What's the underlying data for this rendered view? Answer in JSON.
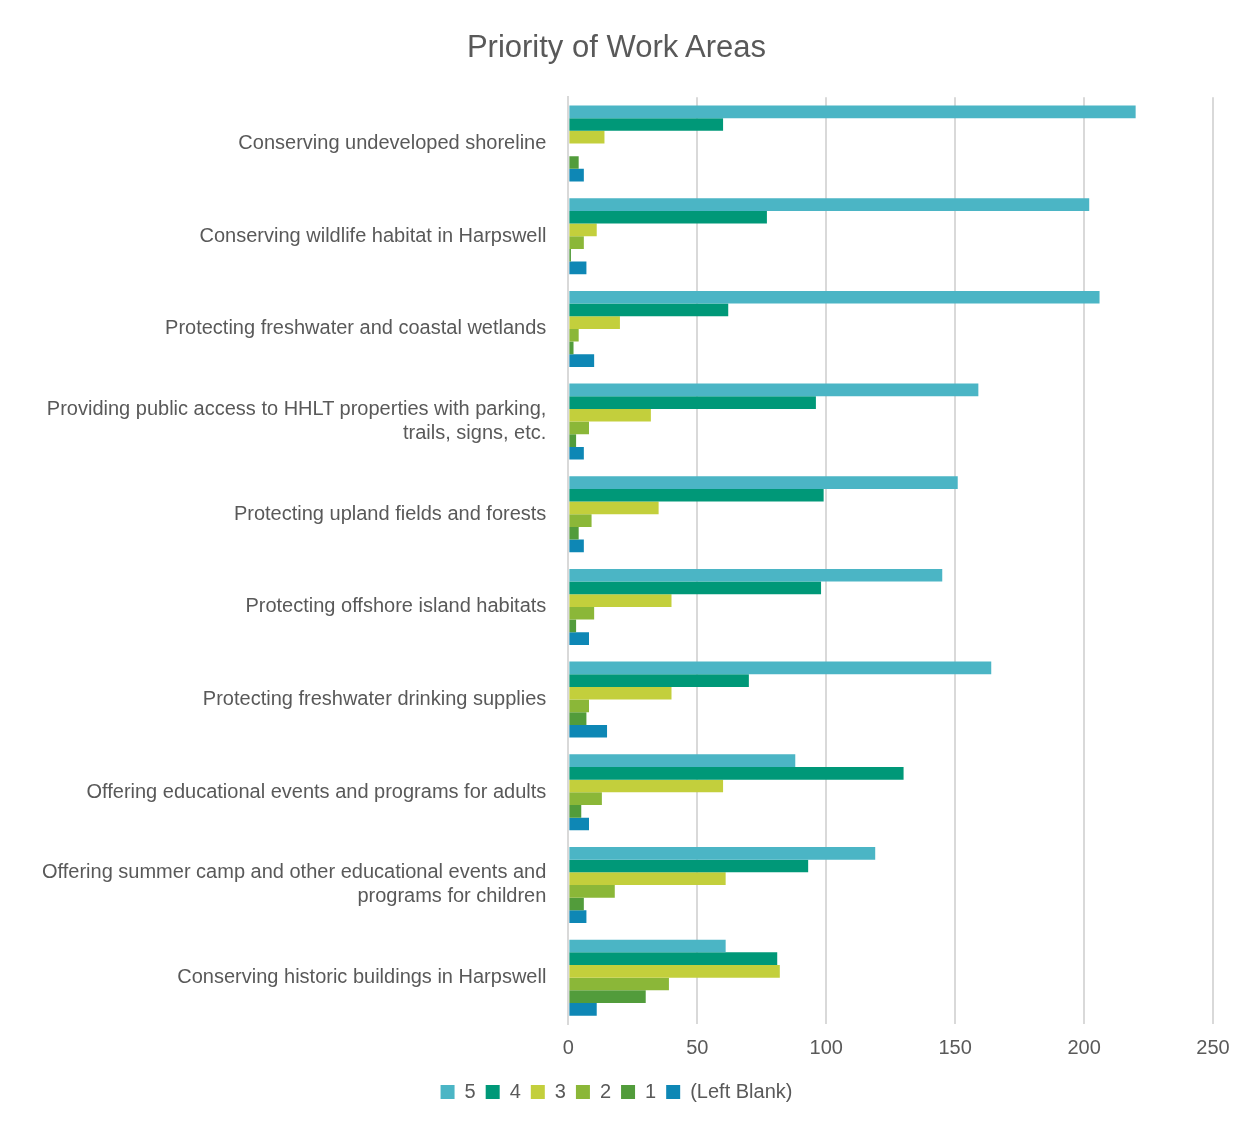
{
  "chart_data": {
    "type": "bar",
    "orientation": "horizontal",
    "title": "Priority of Work Areas",
    "categories": [
      "Conserving undeveloped shoreline",
      "Conserving wildlife habitat in Harpswell",
      "Protecting freshwater and coastal wetlands",
      "Providing public access to HHLT properties with parking, trails, signs, etc.",
      "Protecting upland fields and forests",
      "Protecting offshore island habitats",
      "Protecting freshwater drinking supplies",
      "Offering educational events and programs for adults",
      "Offering summer camp and other educational events and programs for children",
      "Conserving historic buildings in Harpswell"
    ],
    "series": [
      {
        "name": "5",
        "color": "#4bb5c5",
        "values": [
          220,
          202,
          206,
          159,
          151,
          145,
          164,
          88,
          119,
          61
        ]
      },
      {
        "name": "4",
        "color": "#009878",
        "values": [
          60,
          77,
          62,
          96,
          99,
          98,
          70,
          130,
          93,
          81
        ]
      },
      {
        "name": "3",
        "color": "#c3cf3c",
        "values": [
          14,
          11,
          20,
          32,
          35,
          40,
          40,
          60,
          61,
          82
        ]
      },
      {
        "name": "2",
        "color": "#8bb738",
        "values": [
          0,
          6,
          4,
          8,
          9,
          10,
          8,
          13,
          18,
          39
        ]
      },
      {
        "name": "1",
        "color": "#529c3b",
        "values": [
          4,
          1,
          2,
          3,
          4,
          3,
          7,
          5,
          6,
          30
        ]
      },
      {
        "name": "(Left Blank)",
        "color": "#0e87b5",
        "values": [
          6,
          7,
          10,
          6,
          6,
          8,
          15,
          8,
          7,
          11
        ]
      }
    ],
    "xlim": [
      0,
      250
    ],
    "xticks": [
      0,
      50,
      100,
      150,
      200,
      250
    ],
    "grid": "x",
    "legend": "bottom"
  }
}
